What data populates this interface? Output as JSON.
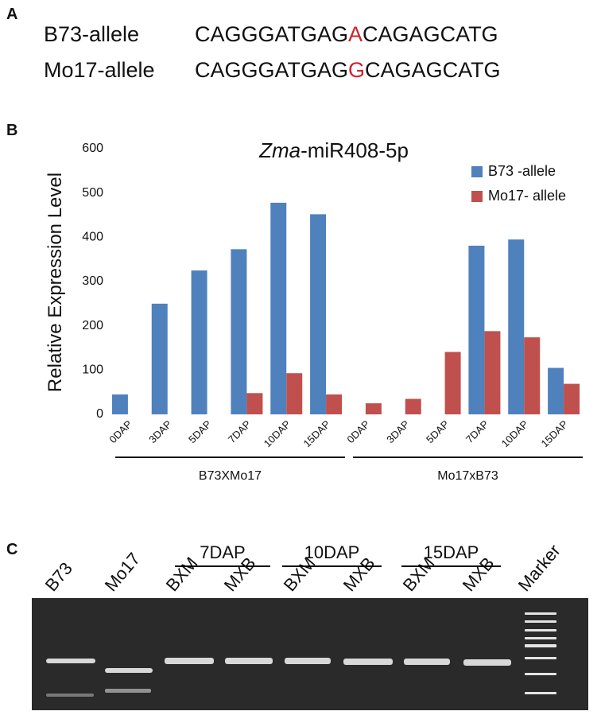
{
  "panel_labels": [
    "A",
    "B",
    "C"
  ],
  "sequences": [
    {
      "name": "B73-allele",
      "prefix": "CAGGGATGAG",
      "snp": "A",
      "suffix": "CAGAGCATG"
    },
    {
      "name": "Mo17-allele",
      "prefix": "CAGGGATGAG",
      "snp": "G",
      "suffix": "CAGAGCATG"
    }
  ],
  "snp_color": "#d0202e",
  "chart_data": {
    "type": "bar",
    "title_italic": "Zma",
    "title": "-miR408-5p",
    "y_label": "Relative Expression Level",
    "categories": [
      "0DAP",
      "3DAP",
      "5DAP",
      "7DAP",
      "10DAP",
      "15DAP",
      "0DAP",
      "3DAP",
      "5DAP",
      "7DAP",
      "10DAP",
      "15DAP"
    ],
    "groups": [
      {
        "name": "B73XMo17",
        "size": 6
      },
      {
        "name": "Mo17xB73",
        "size": 6
      }
    ],
    "series": [
      {
        "name": "B73 -allele",
        "color": "#4f81bd",
        "values": [
          45,
          250,
          325,
          373,
          478,
          452,
          0,
          0,
          0,
          381,
          395,
          105
        ]
      },
      {
        "name": "Mo17- allele",
        "color": "#c0504d",
        "values": [
          0,
          0,
          0,
          48,
          93,
          45,
          25,
          35,
          141,
          188,
          174,
          69
        ]
      }
    ],
    "ylim": [
      0,
      600
    ],
    "yticks": [
      0,
      100,
      200,
      300,
      400,
      500,
      600
    ],
    "grid": false,
    "legend": "top-right"
  },
  "gel": {
    "lanes": [
      "B73",
      "Mo17",
      "BXM",
      "MXB",
      "BXM",
      "MXB",
      "BXM",
      "MXB",
      "Marker"
    ],
    "timepoints": [
      "7DAP",
      "10DAP",
      "15DAP"
    ]
  }
}
